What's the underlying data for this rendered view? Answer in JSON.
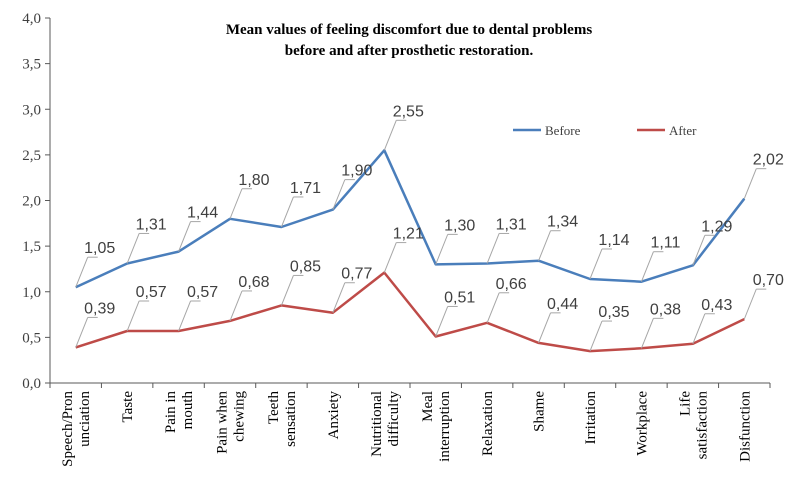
{
  "chart_data": {
    "type": "line",
    "title": [
      "Mean values of  feeling discomfort due to dental problems",
      "before and after prosthetic restoration."
    ],
    "xlabel": "",
    "ylabel": "",
    "ylim": [
      0,
      4
    ],
    "yticks": [
      "0,0",
      "0,5",
      "1,0",
      "1,5",
      "2,0",
      "2,5",
      "3,0",
      "3,5",
      "4,0"
    ],
    "grid": false,
    "legend_position": "top-right",
    "categories": [
      [
        "Speech/Pron",
        "unciation"
      ],
      [
        "Taste"
      ],
      [
        "Pain in",
        "mouth"
      ],
      [
        "Pain when",
        "chewing"
      ],
      [
        "Teeth",
        "sensation"
      ],
      [
        "Anxiety"
      ],
      [
        "Nutritional",
        "difficulty"
      ],
      [
        "Meal",
        "interruption"
      ],
      [
        "Relaxation"
      ],
      [
        "Shame"
      ],
      [
        "Irritation"
      ],
      [
        "Workplace"
      ],
      [
        "Life",
        "satisfaction"
      ],
      [
        "Disfunction"
      ]
    ],
    "series": [
      {
        "name": "Before",
        "color": "#4a7ebb",
        "values": [
          1.05,
          1.31,
          1.44,
          1.8,
          1.71,
          1.9,
          2.55,
          1.3,
          1.31,
          1.34,
          1.14,
          1.11,
          1.29,
          2.02
        ],
        "labels": [
          "1,05",
          "1,31",
          "1,44",
          "1,80",
          "1,71",
          "1,90",
          "2,55",
          "1,30",
          "1,31",
          "1,34",
          "1,14",
          "1,11",
          "1,29",
          "2,02"
        ]
      },
      {
        "name": "After",
        "color": "#be4b48",
        "values": [
          0.39,
          0.57,
          0.57,
          0.68,
          0.85,
          0.77,
          1.21,
          0.51,
          0.66,
          0.44,
          0.35,
          0.38,
          0.43,
          0.7
        ],
        "labels": [
          "0,39",
          "0,57",
          "0,57",
          "0,68",
          "0,85",
          "0,77",
          "1,21",
          "0,51",
          "0,66",
          "0,44",
          "0,35",
          "0,38",
          "0,43",
          "0,70"
        ]
      }
    ]
  }
}
